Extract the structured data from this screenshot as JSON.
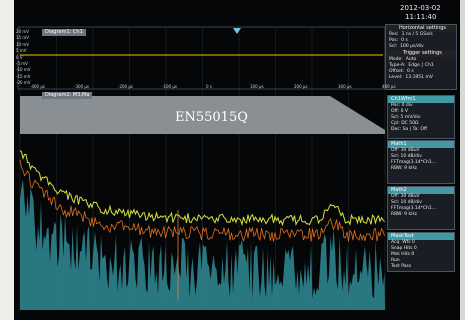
{
  "header": {
    "date": "2012-03-02",
    "time": "11:11:40"
  },
  "diagram1": {
    "title": "Diagram1: Ch1",
    "y_labels": [
      "20 mV",
      "15 mV",
      "10 mV",
      "5 mV",
      "0 V",
      "-5 mV",
      "-10 mV",
      "-15 mV",
      "-20 mV"
    ],
    "x_labels": [
      "-400 µs",
      "-300 µs",
      "-200 µs",
      "-100 µs",
      "0 s",
      "100 µs",
      "200 µs",
      "300 µs",
      "400 µs"
    ]
  },
  "horizontal": {
    "title": "Horizontal settings",
    "rows": [
      [
        "Res:",
        "1 ns / 5 GSa/s"
      ],
      [
        "Pos:",
        "0 s"
      ],
      [
        "Scl:",
        "100 µs/div"
      ]
    ]
  },
  "trigger": {
    "title": "Trigger settings",
    "rows": [
      [
        "Mode:",
        "Auto"
      ],
      [
        "Type-A:",
        "Edge ∫ Ch1"
      ],
      [
        "Offset:",
        "0 s"
      ],
      [
        "Level:",
        "13.1951 mV"
      ]
    ]
  },
  "diagram2": {
    "title": "Diagram2: M3,Ma",
    "label": "EN55015Q"
  },
  "panels": [
    {
      "title": "Ch1Wfm1",
      "rows": [
        "Pos: 0 div",
        "Off: 0 V",
        "Scl: 5 mV/div",
        "Cpl: DC 50Ω",
        "Dec: Sa | Ta: Off"
      ]
    },
    {
      "title": "Math1",
      "rows": [
        "Off: 30 dBuV",
        "Scl: 10 dB/div",
        "FFTmag(3.14*Ch1...",
        "RBW: 9 kHz"
      ]
    },
    {
      "title": "Math2",
      "rows": [
        "Off: 30 dBuV",
        "Scl: 10 dB/div",
        "FFTmag(3.14*Ch1...",
        "RBW: 9 kHz"
      ]
    },
    {
      "title": "MaskTest",
      "rows": [
        "Acq. Wfs 0",
        "Snap Hits 0",
        "Msk Hits 0",
        "Run",
        "Test Pass"
      ]
    }
  ]
}
